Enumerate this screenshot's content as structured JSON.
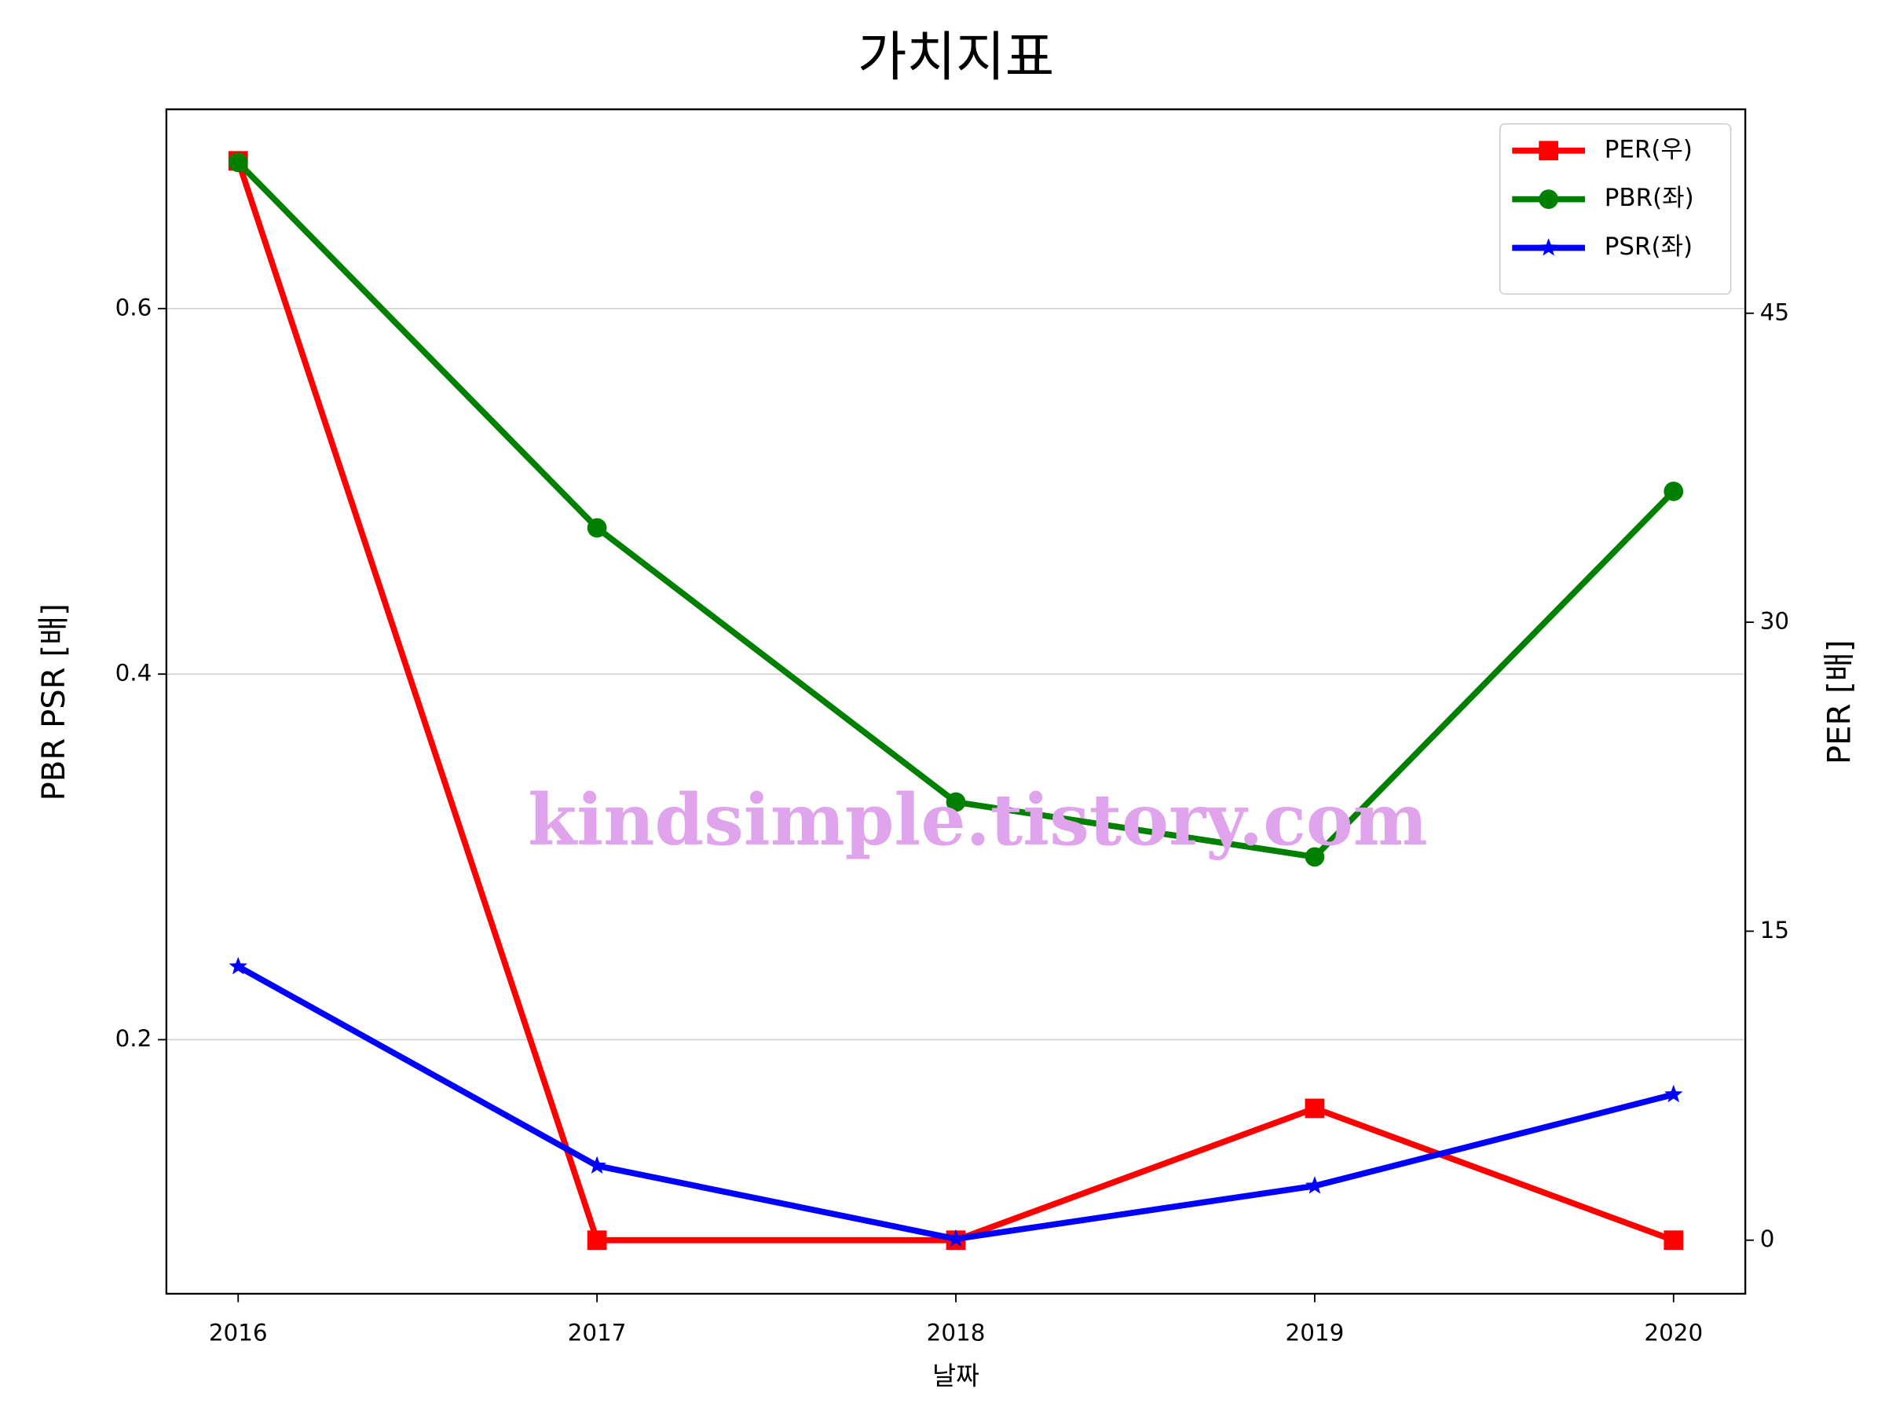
{
  "chart_data": {
    "type": "line",
    "title": "가치지표",
    "xlabel": "날짜",
    "ylabel": "PBR PSR [배]",
    "ylabel_color": "#008000",
    "y2label": "PER [배]",
    "y2label_color": "#ff0000",
    "annotation": "kindsimple.tistory.com",
    "annotation_color": "#e0a4ec",
    "x": [
      2016,
      2017,
      2018,
      2019,
      2020
    ],
    "xlim": [
      2015.8,
      2020.2
    ],
    "xticks": [
      2016,
      2017,
      2018,
      2019,
      2020
    ],
    "ylim": [
      0.061,
      0.709
    ],
    "yticks": [
      0.2,
      0.4,
      0.6
    ],
    "y2lim": [
      -2.6,
      54.9
    ],
    "y2ticks": [
      0,
      15,
      30,
      45
    ],
    "grid": "y",
    "legend": "upper right",
    "series": [
      {
        "name": "PER(우)",
        "color": "#ff0000",
        "marker": "square",
        "axis": "y2",
        "values": [
          52.4,
          0,
          0,
          6.4,
          0
        ]
      },
      {
        "name": "PBR(좌)",
        "color": "#008000",
        "marker": "circle",
        "values": [
          0.68,
          0.48,
          0.33,
          0.3,
          0.5
        ]
      },
      {
        "name": "PSR(좌)",
        "color": "#0000ff",
        "marker": "star",
        "values": [
          0.24,
          0.131,
          0.091,
          0.12,
          0.17
        ]
      }
    ]
  }
}
